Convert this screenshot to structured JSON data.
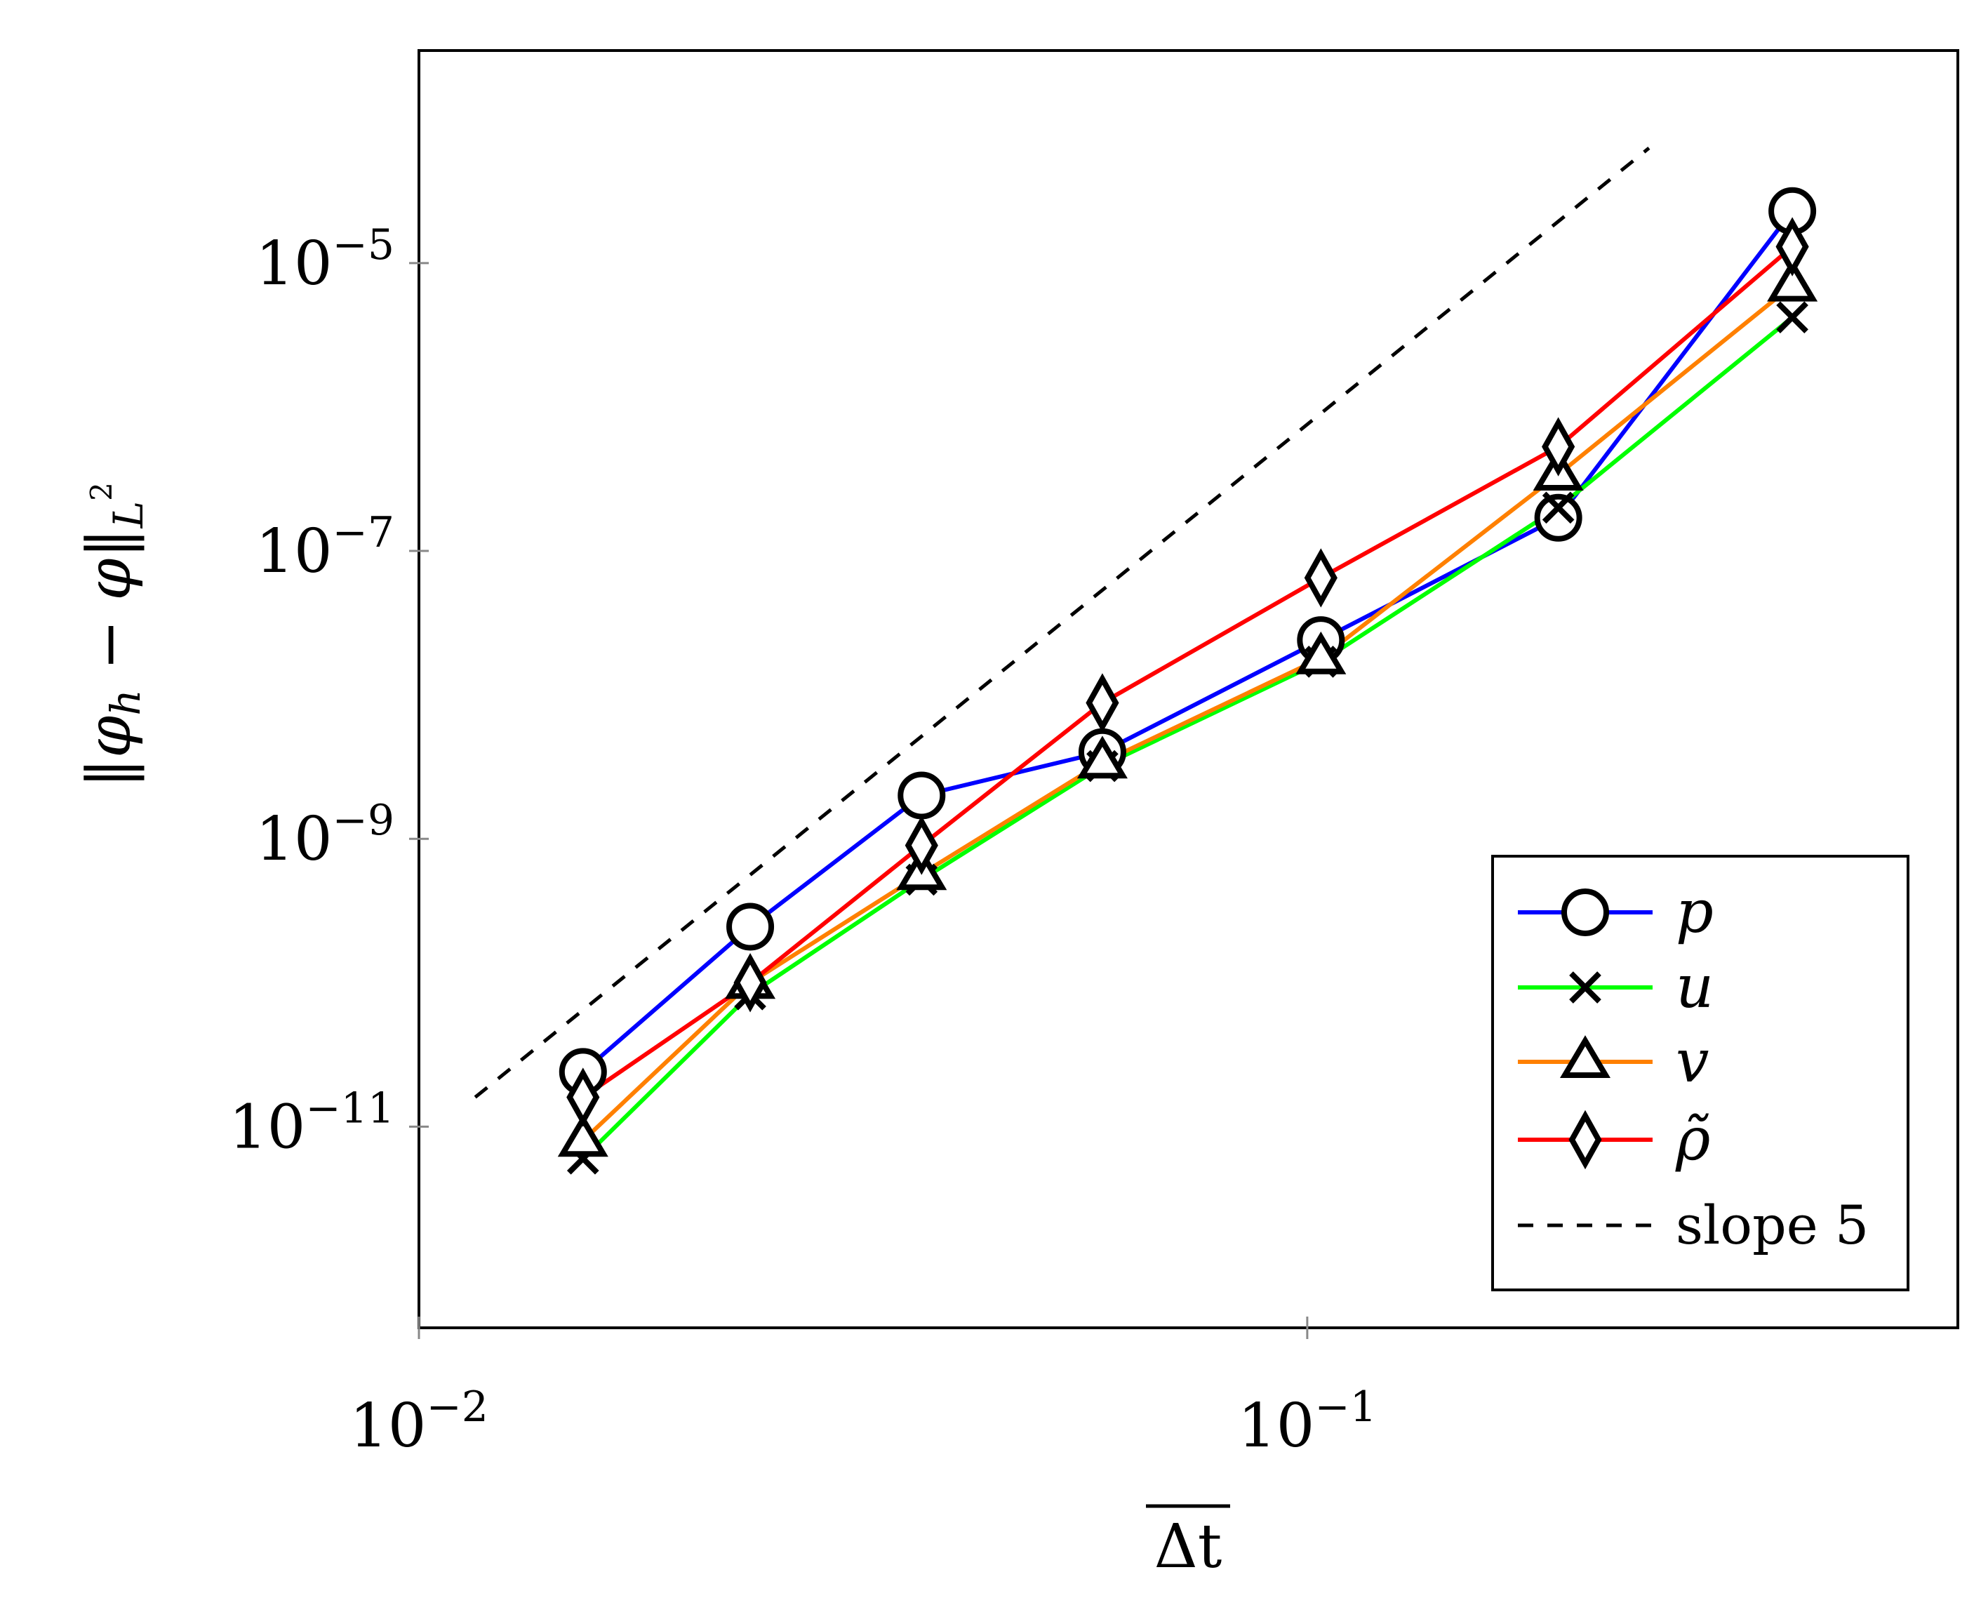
{
  "chart_data": {
    "type": "line",
    "scale": {
      "x": "log",
      "y": "log"
    },
    "xlim": [
      0.01,
      0.54
    ],
    "ylim": [
      4e-13,
      0.0003
    ],
    "xlabel": {
      "main": "Δt",
      "overline": true
    },
    "ylabel": {
      "phi_h": "φ",
      "h": "h",
      "phi": "φ",
      "minus": "−",
      "norm": "‖",
      "L": "L",
      "two": "2"
    },
    "x_ticks": [
      {
        "value": 0.01,
        "base": "10",
        "exp": "−2"
      },
      {
        "value": 0.1,
        "base": "10",
        "exp": "−1"
      }
    ],
    "y_ticks": [
      {
        "value": 1e-05,
        "base": "10",
        "exp": "−5"
      },
      {
        "value": 1e-07,
        "base": "10",
        "exp": "−7"
      },
      {
        "value": 1e-09,
        "base": "10",
        "exp": "−9"
      },
      {
        "value": 1e-11,
        "base": "10",
        "exp": "−11"
      }
    ],
    "x": [
      0.0153,
      0.0236,
      0.0368,
      0.0588,
      0.1036,
      0.1917,
      0.3516
    ],
    "series": [
      {
        "name": "p",
        "color": "#0000ff",
        "marker": "circle",
        "values": [
          2.4e-11,
          2.45e-10,
          2e-09,
          4e-09,
          2.4e-08,
          1.7e-07,
          2.3e-05
        ]
      },
      {
        "name": "u",
        "color": "#00ff00",
        "marker": "cross",
        "values": [
          6e-12,
          8.3e-11,
          5.2e-10,
          3.2e-09,
          1.7e-08,
          2e-07,
          4.2e-06
        ]
      },
      {
        "name": "v",
        "color": "#ff8000",
        "marker": "triangle",
        "values": [
          8e-12,
          1e-10,
          5.7e-10,
          3.4e-09,
          1.8e-08,
          3.4e-07,
          7e-06
        ]
      },
      {
        "name": "ρ̃",
        "color": "#ff0000",
        "marker": "diamond",
        "values": [
          1.6e-11,
          1e-10,
          9e-10,
          8.8e-09,
          6.5e-08,
          5.3e-07,
          1.3e-05
        ]
      }
    ],
    "reference": {
      "name": "slope 5",
      "style": "dashed",
      "color": "#000000",
      "x": [
        0.01157,
        0.2425
      ],
      "values": [
        1.6e-11,
        6.3e-05
      ]
    },
    "legend": {
      "position": "bottom-right",
      "entries": [
        {
          "label": "p",
          "italic": true
        },
        {
          "label": "u",
          "italic": true
        },
        {
          "label": "v",
          "italic": true
        },
        {
          "label": "ρ̃",
          "italic": true
        },
        {
          "label": "slope 5",
          "italic": false
        }
      ]
    },
    "grid": false
  }
}
